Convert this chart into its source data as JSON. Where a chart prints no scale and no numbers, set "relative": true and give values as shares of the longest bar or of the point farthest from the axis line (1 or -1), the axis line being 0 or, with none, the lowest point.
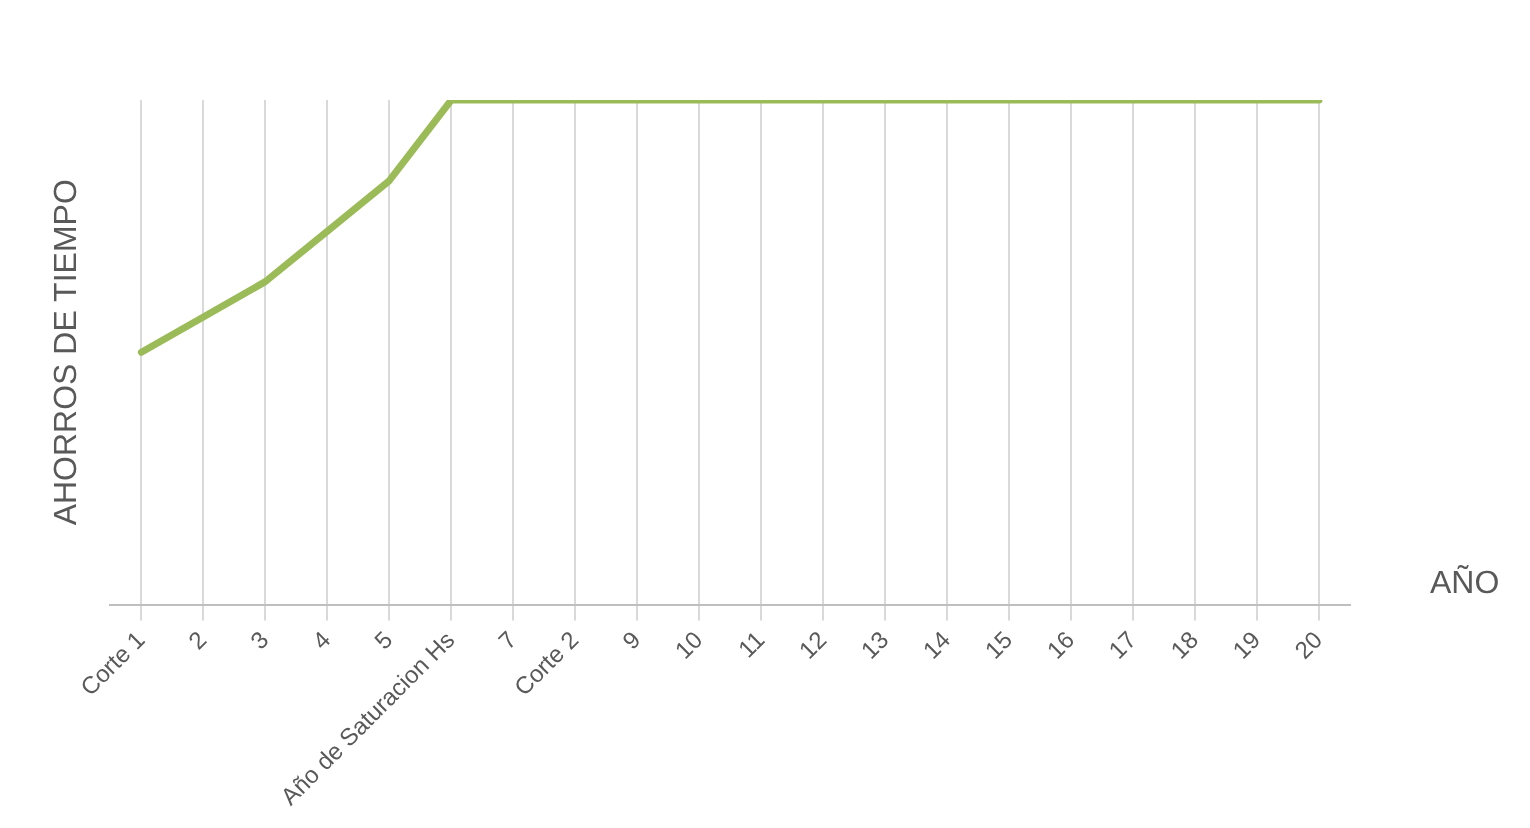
{
  "chart_data": {
    "type": "line",
    "relative": true,
    "ylabel": "AHORROS DE TIEMPO",
    "xlabel": "AÑO",
    "categories": [
      "Corte 1",
      "2",
      "3",
      "4",
      "5",
      "Año de Saturacion Hs",
      "7",
      "Corte 2",
      "9",
      "10",
      "11",
      "12",
      "13",
      "14",
      "15",
      "16",
      "17",
      "18",
      "19",
      "20"
    ],
    "series": [
      {
        "color": "#9bbb59",
        "values": [
          0.5,
          0.57,
          0.64,
          0.74,
          0.84,
          1,
          1,
          1,
          1,
          1,
          1,
          1,
          1,
          1,
          1,
          1,
          1,
          1,
          1,
          1
        ]
      }
    ],
    "grid": "x",
    "legend": false,
    "marker": "none",
    "line_style": "solid"
  }
}
